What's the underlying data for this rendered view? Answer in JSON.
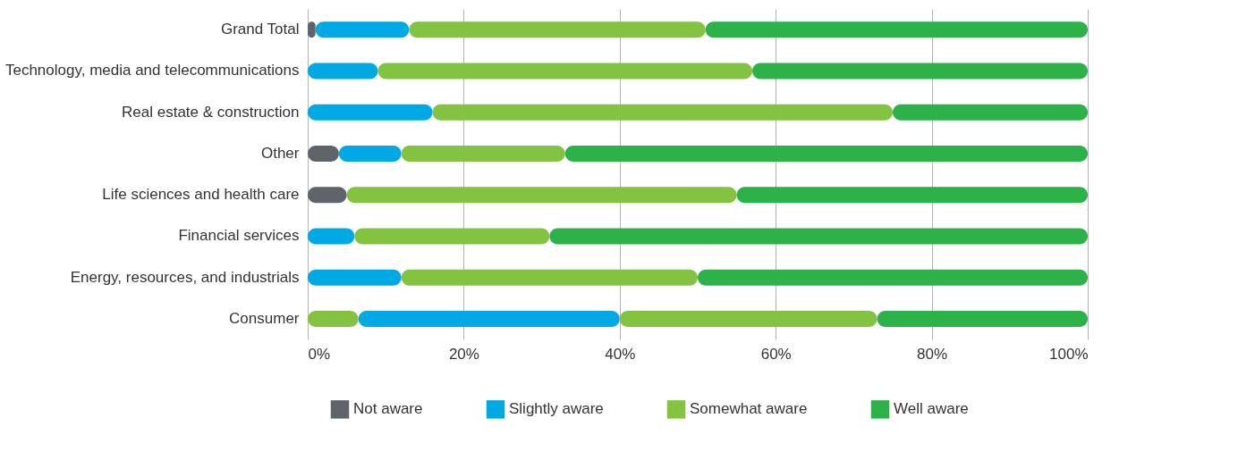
{
  "chart_data": {
    "type": "bar",
    "orientation": "horizontal",
    "stacked": true,
    "categories": [
      "Grand Total",
      "Technology, media and telecommunications",
      "Real estate & construction",
      "Other",
      "Life sciences and health care",
      "Financial services",
      "Energy, resources, and industrials",
      "Consumer"
    ],
    "series": [
      {
        "color": "#84c341",
        "values": [
          null,
          null,
          null,
          null,
          null,
          null,
          null,
          6.5
        ]
      },
      {
        "name": "Not aware",
        "color": "#5f646b",
        "values": [
          1,
          null,
          null,
          4,
          5,
          null,
          null,
          null
        ]
      },
      {
        "name": "Slightly aware",
        "color": "#00a9e4",
        "values": [
          12,
          9,
          16,
          8,
          null,
          6,
          12,
          33.5
        ]
      },
      {
        "name": "Somewhat aware",
        "color": "#84c341",
        "values": [
          38,
          48,
          59,
          21,
          50,
          25,
          38,
          33
        ]
      },
      {
        "name": "Well aware",
        "color": "#2db24a",
        "values": [
          49,
          43,
          25,
          67,
          45,
          69,
          50,
          27
        ]
      }
    ],
    "xlim": [
      0,
      100
    ],
    "xticks": [
      {
        "value": 0,
        "label": "0%"
      },
      {
        "value": 20,
        "label": "20%"
      },
      {
        "value": 40,
        "label": "40%"
      },
      {
        "value": 60,
        "label": "60%"
      },
      {
        "value": 80,
        "label": "80%"
      },
      {
        "value": 100,
        "label": "100%"
      }
    ],
    "grid": "x",
    "legend": "bottom"
  }
}
